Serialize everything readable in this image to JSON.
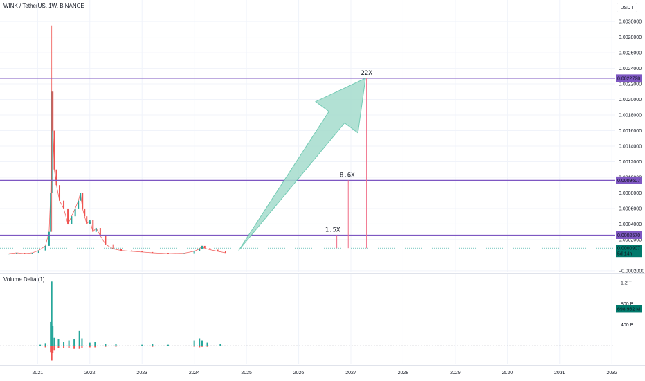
{
  "header": {
    "symbol_title": "WINK / TetherUS, 1W, BINANCE",
    "currency_button": "USDT"
  },
  "indicator": {
    "title": "Volume Delta (1)",
    "ticks": [
      "1.2 T",
      "800 B",
      "400 B"
    ],
    "last_value_label": "698.962 M",
    "last_value": 0.699
  },
  "colors": {
    "up": "#26a69a",
    "down": "#ef5350",
    "level_line": "#7e57c2",
    "arrow_fill": "#a5dccd",
    "arrow_stroke": "#5cc2a8",
    "target_line": "#f06b85",
    "price_label_bg": "#00796b"
  },
  "chart_data": [
    {
      "type": "candlestick",
      "title": "WINK / TetherUS, 1W, BINANCE",
      "xlabel": "",
      "ylabel": "",
      "y_ticks": [
        "0.0030000",
        "0.0028000",
        "0.0026000",
        "0.0024000",
        "0.0022000",
        "0.0020000",
        "0.0018000",
        "0.0016000",
        "0.0014000",
        "0.0012000",
        "0.0010000",
        "0.0008000",
        "0.0006000",
        "0.0004000",
        "0.0002000",
        "−0.0002000"
      ],
      "y_range": [
        -0.00021,
        0.00301
      ],
      "x_ticks": [
        "2021",
        "2022",
        "2023",
        "2024",
        "2025",
        "2026",
        "2027",
        "2028",
        "2029",
        "2030",
        "2031",
        "2032"
      ],
      "x_range": [
        2020.28,
        2032.05
      ],
      "series": [
        {
          "values_x": [
            2020.45,
            2020.6,
            2020.75,
            2020.9,
            2021.02,
            2021.15,
            2021.22,
            2021.25,
            2021.27,
            2021.29,
            2021.32,
            2021.36,
            2021.42,
            2021.5,
            2021.58,
            2021.65,
            2021.72,
            2021.78,
            2021.82,
            2021.86,
            2021.9,
            2021.94,
            2022.0,
            2022.06,
            2022.12,
            2022.2,
            2022.3,
            2022.45,
            2022.6,
            2022.8,
            2023.0,
            2023.2,
            2023.5,
            2023.8,
            2024.0,
            2024.1,
            2024.15,
            2024.2,
            2024.3,
            2024.45,
            2024.6
          ],
          "values_y": [
            2e-05,
            3e-05,
            2e-05,
            3e-05,
            6e-05,
            0.00012,
            0.0003,
            0.0008,
            0.0021,
            0.0016,
            0.0011,
            0.0009,
            0.0007,
            0.0006,
            0.0004,
            0.0005,
            0.0006,
            0.0007,
            0.0008,
            0.0006,
            0.0005,
            0.0004,
            0.00045,
            0.0003,
            0.00035,
            0.00025,
            0.00014,
            8e-05,
            6e-05,
            5e-05,
            4e-05,
            3e-05,
            2e-05,
            2.5e-05,
            5e-05,
            8e-05,
            0.00012,
            9e-05,
            7e-05,
            5e-05,
            3e-05
          ]
        }
      ],
      "levels": [
        {
          "label": "0.0022728",
          "value": 0.0022728
        },
        {
          "label": "0.0009607",
          "value": 0.0009607
        },
        {
          "label": "0.0002570",
          "value": 0.000257
        }
      ],
      "annotations": [
        {
          "text": "22X",
          "x": 2027.3,
          "y": 0.0022728
        },
        {
          "text": "8.6X",
          "x": 2026.93,
          "y": 0.0009607
        },
        {
          "text": "1.5X",
          "x": 2026.65,
          "y": 0.000257
        }
      ],
      "last_price": {
        "label": "0.0000907",
        "value": 9.07e-05,
        "countdown": "5d 14h"
      },
      "grid": true
    },
    {
      "type": "bar",
      "title": "Volume Delta (1)",
      "x": [
        2021.05,
        2021.15,
        2021.25,
        2021.27,
        2021.29,
        2021.32,
        2021.4,
        2021.5,
        2021.6,
        2021.7,
        2021.8,
        2021.85,
        2022.0,
        2022.1,
        2022.3,
        2022.5,
        2023.0,
        2023.2,
        2023.5,
        2024.0,
        2024.1,
        2024.15,
        2024.25,
        2024.5
      ],
      "values": [
        0.02,
        0.05,
        0.45,
        1.22,
        0.38,
        0.15,
        0.12,
        0.08,
        0.1,
        0.12,
        0.28,
        0.14,
        0.06,
        0.08,
        0.04,
        0.03,
        0.02,
        0.03,
        0.02,
        0.1,
        0.14,
        0.1,
        0.06,
        0.04
      ],
      "values_down": [
        0.01,
        0.03,
        0.12,
        0.28,
        0.14,
        0.08,
        0.05,
        0.04,
        0.05,
        0.06,
        0.06,
        0.04,
        0.03,
        0.03,
        0.02,
        0.02,
        0.01,
        0.02,
        0.01,
        0.02,
        0.03,
        0.02,
        0.02,
        0.01
      ],
      "ylim": [
        -0.3,
        1.25
      ]
    }
  ]
}
